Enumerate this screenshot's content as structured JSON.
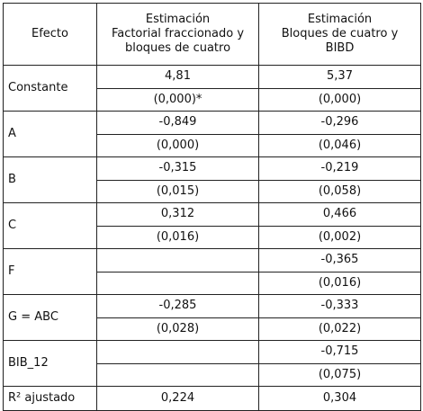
{
  "table": {
    "headers": [
      "Efecto",
      "Estimación\nFactorial fraccionado y\nbloques de cuatro",
      "Estimación\nBloques de cuatro y\nBIBD"
    ],
    "header_lines": {
      "col0": [
        "Efecto"
      ],
      "col1": [
        "Estimación",
        "Factorial fraccionado y",
        "bloques de cuatro"
      ],
      "col2": [
        "Estimación",
        "Bloques de cuatro y",
        "BIBD"
      ]
    },
    "rows": [
      {
        "effect": "Constante",
        "est1": "4,81",
        "p1": "(0,000)*",
        "est2": "5,37",
        "p2": "(0,000)"
      },
      {
        "effect": "A",
        "est1": "-0,849",
        "p1": "(0,000)",
        "est2": "-0,296",
        "p2": "(0,046)"
      },
      {
        "effect": "B",
        "est1": "-0,315",
        "p1": "(0,015)",
        "est2": "-0,219",
        "p2": "(0,058)"
      },
      {
        "effect": "C",
        "est1": "0,312",
        "p1": "(0,016)",
        "est2": "0,466",
        "p2": "(0,002)"
      },
      {
        "effect": "F",
        "est1": "",
        "p1": "",
        "est2": "-0,365",
        "p2": "(0,016)"
      },
      {
        "effect": "G = ABC",
        "est1": "-0,285",
        "p1": "(0,028)",
        "est2": "-0,333",
        "p2": "(0,022)"
      },
      {
        "effect": "BIB_12",
        "est1": "",
        "p1": "",
        "est2": "-0,715",
        "p2": "(0,075)"
      }
    ],
    "r2": {
      "label": "R² ajustado",
      "v1": "0,224",
      "v2": "0,304"
    }
  }
}
